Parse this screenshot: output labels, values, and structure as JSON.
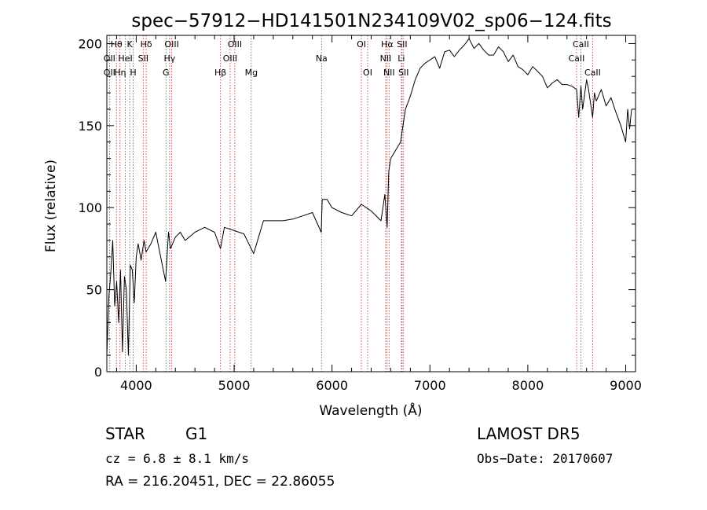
{
  "chart_data": {
    "type": "line",
    "title": "spec−57912−HD141501N234109V02_sp06−124.fits",
    "xlabel": "Wavelength (Å)",
    "ylabel": "Flux (relative)",
    "xlim": [
      3700,
      9100
    ],
    "ylim": [
      0,
      205
    ],
    "xticks": [
      4000,
      5000,
      6000,
      7000,
      8000,
      9000
    ],
    "yticks": [
      0,
      50,
      100,
      150,
      200
    ],
    "grid": false,
    "series": [
      {
        "x": [
          3700,
          3720,
          3740,
          3760,
          3780,
          3800,
          3820,
          3840,
          3860,
          3880,
          3900,
          3920,
          3940,
          3960,
          3980,
          4000,
          4020,
          4050,
          4080,
          4100,
          4150,
          4200,
          4250,
          4300,
          4330,
          4350,
          4400,
          4450,
          4500,
          4600,
          4700,
          4800,
          4861,
          4900,
          5000,
          5100,
          5200,
          5300,
          5400,
          5500,
          5600,
          5700,
          5800,
          5890,
          5900,
          5950,
          6000,
          6100,
          6200,
          6300,
          6400,
          6500,
          6540,
          6563,
          6580,
          6600,
          6650,
          6700,
          6750,
          6800,
          6850,
          6900,
          6950,
          7000,
          7050,
          7100,
          7150,
          7200,
          7250,
          7300,
          7350,
          7400,
          7450,
          7500,
          7550,
          7600,
          7650,
          7700,
          7750,
          7800,
          7850,
          7900,
          7950,
          8000,
          8050,
          8100,
          8150,
          8200,
          8250,
          8300,
          8350,
          8400,
          8450,
          8498,
          8520,
          8542,
          8560,
          8600,
          8620,
          8662,
          8680,
          8700,
          8750,
          8800,
          8850,
          8900,
          8950,
          9000,
          9020,
          9040,
          9060
        ],
        "y": [
          10,
          45,
          60,
          80,
          40,
          55,
          30,
          62,
          12,
          58,
          50,
          10,
          65,
          62,
          42,
          70,
          78,
          68,
          80,
          73,
          78,
          85,
          70,
          55,
          85,
          75,
          82,
          85,
          80,
          85,
          88,
          85,
          75,
          88,
          86,
          84,
          72,
          92,
          92,
          92,
          93,
          95,
          97,
          85,
          105,
          105,
          100,
          97,
          95,
          102,
          98,
          92,
          108,
          88,
          122,
          130,
          135,
          140,
          160,
          168,
          178,
          185,
          188,
          190,
          192,
          185,
          195,
          196,
          192,
          196,
          199,
          203,
          197,
          200,
          196,
          193,
          193,
          198,
          195,
          189,
          193,
          186,
          184,
          181,
          186,
          183,
          180,
          173,
          176,
          178,
          175,
          175,
          174,
          172,
          155,
          174,
          160,
          178,
          172,
          155,
          170,
          165,
          172,
          162,
          167,
          158,
          150,
          140,
          160,
          148,
          160
        ]
      }
    ],
    "lines": [
      {
        "name": "Hθ",
        "x": 3798
      },
      {
        "name": "OII",
        "x": 3727
      },
      {
        "name": "OII",
        "x": 3727
      },
      {
        "name": "Hη",
        "x": 3835
      },
      {
        "name": "K",
        "x": 3934
      },
      {
        "name": "HeI",
        "x": 3889
      },
      {
        "name": "H",
        "x": 3969
      },
      {
        "name": "Hδ",
        "x": 4102
      },
      {
        "name": "SII",
        "x": 4072
      },
      {
        "name": "OIII",
        "x": 4363
      },
      {
        "name": "Hγ",
        "x": 4341
      },
      {
        "name": "G",
        "x": 4304
      },
      {
        "name": "Hβ",
        "x": 4861
      },
      {
        "name": "OIII",
        "x": 5007
      },
      {
        "name": "OIII",
        "x": 4959
      },
      {
        "name": "Mg",
        "x": 5175
      },
      {
        "name": "Na",
        "x": 5893
      },
      {
        "name": "OI",
        "x": 6300
      },
      {
        "name": "OI",
        "x": 6364
      },
      {
        "name": "Hα",
        "x": 6563
      },
      {
        "name": "NII",
        "x": 6548
      },
      {
        "name": "NII",
        "x": 6583
      },
      {
        "name": "SII",
        "x": 6716
      },
      {
        "name": "Li",
        "x": 6708
      },
      {
        "name": "SII",
        "x": 6731
      },
      {
        "name": "CaII",
        "x": 8542
      },
      {
        "name": "CaII",
        "x": 8498
      },
      {
        "name": "CaII",
        "x": 8662
      }
    ]
  },
  "footer": {
    "class_label": "STAR",
    "subclass": "G1",
    "survey": "LAMOST DR5",
    "cz": "cz = 6.8 ± 8.1 km/s",
    "obs_date": "Obs−Date: 20170607",
    "coords": "RA = 216.20451, DEC =  22.86055"
  },
  "colors": {
    "line_marker": "#b03030",
    "spectrum": "#000000",
    "axis": "#000000"
  }
}
